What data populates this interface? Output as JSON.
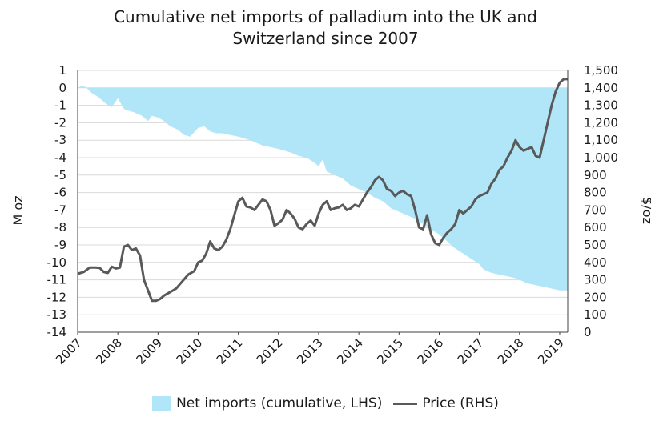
{
  "colors": {
    "area": "#b1e6f8",
    "line": "#595959",
    "grid": "#d9d9d9",
    "axis": "#404040"
  },
  "chart_data": {
    "type": "area",
    "title_lines": [
      "Cumulative net imports of palladium into the UK and",
      "Switzerland since 2007"
    ],
    "ylabel": "M oz",
    "y2label": "$/oz",
    "ylim": [
      -14,
      1
    ],
    "y2lim": [
      0,
      1500
    ],
    "yticks": [
      1,
      0,
      -1,
      -2,
      -3,
      -4,
      -5,
      -6,
      -7,
      -8,
      -9,
      -10,
      -11,
      -12,
      -13,
      -14
    ],
    "y2ticks": [
      "1,500",
      "1,400",
      "1,300",
      "1,200",
      "1,100",
      "1,000",
      "900",
      "800",
      "700",
      "600",
      "500",
      "400",
      "300",
      "200",
      "100",
      "0"
    ],
    "xlim": [
      2007,
      2019.2
    ],
    "xticks": [
      "2007",
      "2008",
      "2009",
      "2010",
      "2011",
      "2012",
      "2013",
      "2014",
      "2015",
      "2016",
      "2017",
      "2018",
      "2019"
    ],
    "grid": true,
    "legend_position": "bottom",
    "series": [
      {
        "name": "Net imports (cumulative, LHS)",
        "type": "area",
        "axis": "left",
        "x": [
          2007.0,
          2007.1,
          2007.2,
          2007.35,
          2007.5,
          2007.7,
          2007.85,
          2008.0,
          2008.15,
          2008.25,
          2008.4,
          2008.6,
          2008.75,
          2008.85,
          2009.0,
          2009.15,
          2009.3,
          2009.5,
          2009.65,
          2009.8,
          2010.0,
          2010.15,
          2010.3,
          2010.45,
          2010.6,
          2010.8,
          2011.0,
          2011.3,
          2011.6,
          2011.8,
          2012.0,
          2012.3,
          2012.5,
          2012.7,
          2012.9,
          2013.0,
          2013.1,
          2013.2,
          2013.4,
          2013.6,
          2013.8,
          2014.0,
          2014.2,
          2014.4,
          2014.6,
          2014.8,
          2015.0,
          2015.2,
          2015.4,
          2015.6,
          2015.8,
          2016.0,
          2016.2,
          2016.4,
          2016.6,
          2016.8,
          2017.0,
          2017.1,
          2017.3,
          2017.5,
          2017.7,
          2017.9,
          2018.0,
          2018.2,
          2018.4,
          2018.6,
          2018.8,
          2019.0,
          2019.2
        ],
        "values": [
          0.0,
          0.1,
          0.05,
          -0.3,
          -0.5,
          -0.9,
          -1.1,
          -0.6,
          -1.2,
          -1.3,
          -1.4,
          -1.6,
          -1.9,
          -1.6,
          -1.7,
          -1.9,
          -2.2,
          -2.4,
          -2.7,
          -2.8,
          -2.3,
          -2.2,
          -2.5,
          -2.6,
          -2.6,
          -2.7,
          -2.8,
          -3.0,
          -3.3,
          -3.4,
          -3.5,
          -3.7,
          -3.9,
          -4.0,
          -4.3,
          -4.5,
          -4.1,
          -4.8,
          -5.0,
          -5.2,
          -5.6,
          -5.8,
          -6.0,
          -6.3,
          -6.5,
          -6.9,
          -7.1,
          -7.3,
          -7.5,
          -7.8,
          -8.1,
          -8.4,
          -8.8,
          -9.2,
          -9.5,
          -9.8,
          -10.1,
          -10.4,
          -10.6,
          -10.7,
          -10.8,
          -10.9,
          -11.0,
          -11.2,
          -11.3,
          -11.4,
          -11.5,
          -11.6,
          -11.6
        ]
      },
      {
        "name": "Price (RHS)",
        "type": "line",
        "axis": "right",
        "x": [
          2007.0,
          2007.15,
          2007.3,
          2007.45,
          2007.55,
          2007.65,
          2007.75,
          2007.85,
          2007.95,
          2008.05,
          2008.15,
          2008.25,
          2008.35,
          2008.45,
          2008.55,
          2008.65,
          2008.75,
          2008.85,
          2008.95,
          2009.05,
          2009.15,
          2009.3,
          2009.45,
          2009.6,
          2009.75,
          2009.9,
          2010.0,
          2010.1,
          2010.2,
          2010.3,
          2010.4,
          2010.5,
          2010.6,
          2010.7,
          2010.8,
          2010.9,
          2011.0,
          2011.1,
          2011.2,
          2011.3,
          2011.4,
          2011.5,
          2011.6,
          2011.7,
          2011.8,
          2011.9,
          2012.0,
          2012.1,
          2012.2,
          2012.3,
          2012.4,
          2012.5,
          2012.6,
          2012.7,
          2012.8,
          2012.9,
          2013.0,
          2013.1,
          2013.2,
          2013.3,
          2013.4,
          2013.5,
          2013.6,
          2013.7,
          2013.8,
          2013.9,
          2014.0,
          2014.1,
          2014.2,
          2014.3,
          2014.4,
          2014.5,
          2014.6,
          2014.7,
          2014.8,
          2014.9,
          2015.0,
          2015.1,
          2015.2,
          2015.3,
          2015.4,
          2015.5,
          2015.6,
          2015.7,
          2015.8,
          2015.9,
          2016.0,
          2016.1,
          2016.2,
          2016.3,
          2016.4,
          2016.5,
          2016.6,
          2016.7,
          2016.8,
          2016.9,
          2017.0,
          2017.1,
          2017.2,
          2017.3,
          2017.4,
          2017.5,
          2017.6,
          2017.7,
          2017.8,
          2017.9,
          2018.0,
          2018.1,
          2018.2,
          2018.3,
          2018.4,
          2018.5,
          2018.6,
          2018.7,
          2018.8,
          2018.9,
          2019.0,
          2019.1,
          2019.2
        ],
        "values": [
          335,
          345,
          370,
          370,
          368,
          345,
          340,
          375,
          365,
          370,
          490,
          500,
          470,
          480,
          440,
          300,
          240,
          180,
          180,
          190,
          210,
          230,
          250,
          290,
          330,
          350,
          400,
          410,
          450,
          520,
          480,
          470,
          490,
          530,
          590,
          670,
          750,
          770,
          720,
          715,
          700,
          730,
          760,
          750,
          700,
          610,
          625,
          645,
          700,
          680,
          650,
          600,
          590,
          620,
          640,
          610,
          680,
          730,
          750,
          700,
          710,
          715,
          730,
          700,
          710,
          730,
          720,
          760,
          800,
          830,
          870,
          890,
          870,
          820,
          810,
          780,
          800,
          810,
          790,
          780,
          700,
          600,
          590,
          670,
          560,
          510,
          500,
          540,
          570,
          590,
          620,
          700,
          680,
          700,
          720,
          760,
          780,
          790,
          800,
          850,
          880,
          930,
          950,
          1000,
          1040,
          1100,
          1060,
          1040,
          1050,
          1060,
          1010,
          1000,
          1100,
          1200,
          1300,
          1380,
          1430,
          1450,
          1450
        ]
      }
    ]
  }
}
